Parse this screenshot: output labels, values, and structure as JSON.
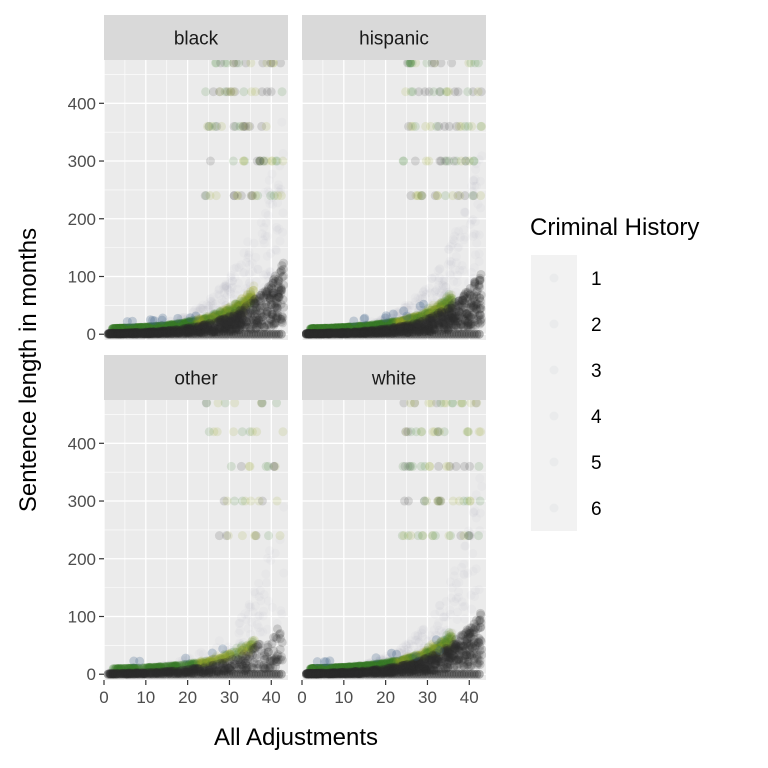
{
  "chart_data": {
    "type": "scatter",
    "layout": "facet_wrap",
    "xlabel": "All Adjustments",
    "ylabel": "Sentence length in months",
    "xlim": [
      0,
      44
    ],
    "ylim": [
      -10,
      475
    ],
    "xticks": [
      0,
      10,
      20,
      30,
      40
    ],
    "yticks": [
      0,
      100,
      200,
      300,
      400
    ],
    "grid": true,
    "panels": [
      {
        "label": "black",
        "density": 1.0,
        "spread": 1.1
      },
      {
        "label": "hispanic",
        "density": 1.0,
        "spread": 0.95
      },
      {
        "label": "other",
        "density": 0.45,
        "spread": 0.85
      },
      {
        "label": "white",
        "density": 1.0,
        "spread": 1.0
      }
    ],
    "legend": {
      "title": "Criminal History",
      "position": "right",
      "levels": [
        "1",
        "2",
        "3",
        "4",
        "5",
        "6"
      ]
    },
    "colors": {
      "panel_bg": "#ebebeb",
      "strip_bg": "#d9d9d9",
      "grid": "#ffffff",
      "dark_points": "#2b2b2b",
      "green_points": "#3a7d2a",
      "olive_points": "#9aa82a",
      "blue_points": "#3b5f86"
    }
  }
}
